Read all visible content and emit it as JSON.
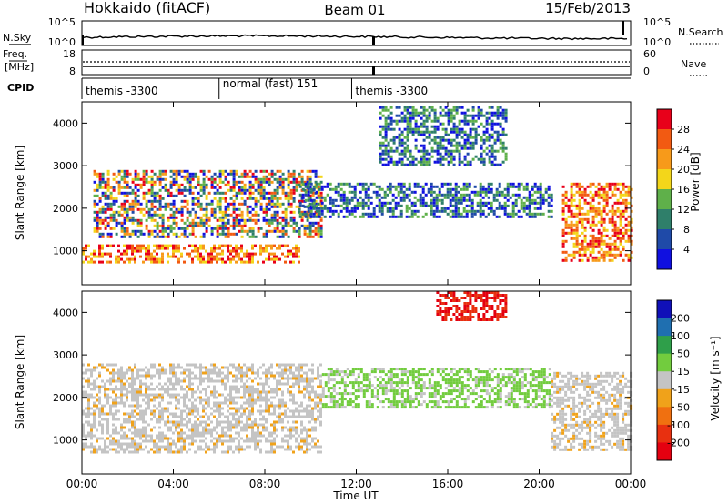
{
  "header": {
    "site": "Hokkaido (fitACF)",
    "beam": "Beam 01",
    "date": "15/Feb/2013"
  },
  "panels": {
    "nsky": {
      "label": "N.Sky",
      "right_label": "N.Search",
      "left_ticks": [
        "10^5",
        "10^0"
      ],
      "right_ticks": [
        "10^5",
        "10^0"
      ]
    },
    "freq": {
      "label_line1": "Freq.",
      "label_line2": "[MHz]",
      "right_label": "Nave",
      "left_ticks": [
        "18",
        "8"
      ],
      "right_ticks": [
        "60",
        "0"
      ]
    },
    "cpid": {
      "label": "CPID",
      "segments": [
        {
          "label": "themis -3300",
          "start_h": 0.0,
          "end_h": 6.0
        },
        {
          "label": "normal (fast) 151",
          "start_h": 6.0,
          "end_h": 11.8
        },
        {
          "label": "themis -3300",
          "start_h": 11.8,
          "end_h": 24.0
        }
      ]
    }
  },
  "xaxis": {
    "label": "Time UT",
    "ticks": [
      "00:00",
      "04:00",
      "08:00",
      "12:00",
      "16:00",
      "20:00",
      "00:00"
    ]
  },
  "power_colorbar": {
    "label": "Power [dB]",
    "ticks": [
      "28",
      "24",
      "20",
      "16",
      "12",
      "8",
      "4"
    ],
    "colors": [
      "#e8001a",
      "#f25a12",
      "#f79a1a",
      "#f3d61a",
      "#5fb04a",
      "#2f7f6a",
      "#1f4aa8",
      "#1010e0"
    ]
  },
  "velocity_colorbar": {
    "label": "Velocity [m s⁻¹]",
    "ticks": [
      "200",
      "100",
      "50",
      "15",
      "-15",
      "-50",
      "-100",
      "-200"
    ],
    "colors": [
      "#1010b8",
      "#1f6fb0",
      "#2f9f4a",
      "#72cc3e",
      "#c4c4c4",
      "#f0a21a",
      "#f07010",
      "#e83010",
      "#e40010"
    ]
  },
  "chart_data": [
    {
      "type": "heatmap",
      "title": "",
      "xlabel": "Time UT",
      "ylabel": "Slant Range [km]",
      "xlim": [
        0,
        24
      ],
      "ylim": [
        200,
        4500
      ],
      "yticks": [
        1000,
        2000,
        3000,
        4000
      ],
      "colorbar": "Power [dB]",
      "features": [
        {
          "t0": 0.0,
          "t1": 9.5,
          "r0": 750,
          "r1": 1150,
          "value": "high (20-28 dB)"
        },
        {
          "t0": 0.5,
          "t1": 10.5,
          "r0": 1300,
          "r1": 2900,
          "value": "mixed (8-28 dB)"
        },
        {
          "t0": 9.5,
          "t1": 20.5,
          "r0": 1800,
          "r1": 2600,
          "value": "low (4-16 dB)"
        },
        {
          "t0": 13.0,
          "t1": 18.5,
          "r0": 3000,
          "r1": 4400,
          "value": "low (4-12 dB)"
        },
        {
          "t0": 21.0,
          "t1": 24.0,
          "r0": 800,
          "r1": 2600,
          "value": "high (16-28 dB)"
        }
      ]
    },
    {
      "type": "heatmap",
      "title": "",
      "xlabel": "Time UT",
      "ylabel": "Slant Range [km]",
      "xlim": [
        0,
        24
      ],
      "ylim": [
        200,
        4500
      ],
      "yticks": [
        1000,
        2000,
        3000,
        4000
      ],
      "colorbar": "Velocity [m s⁻¹]",
      "features": [
        {
          "t0": 0.0,
          "t1": 10.5,
          "r0": 700,
          "r1": 2800,
          "value": "-15 to 15 (grey)"
        },
        {
          "t0": 10.5,
          "t1": 20.5,
          "r0": 1800,
          "r1": 2700,
          "value": "15 to 50 (green)"
        },
        {
          "t0": 15.5,
          "t1": 18.5,
          "r0": 3800,
          "r1": 4500,
          "value": "-200 to -100 (red)"
        },
        {
          "t0": 20.5,
          "t1": 24.0,
          "r0": 800,
          "r1": 2600,
          "value": "-15 to 15 (grey)"
        }
      ]
    }
  ]
}
